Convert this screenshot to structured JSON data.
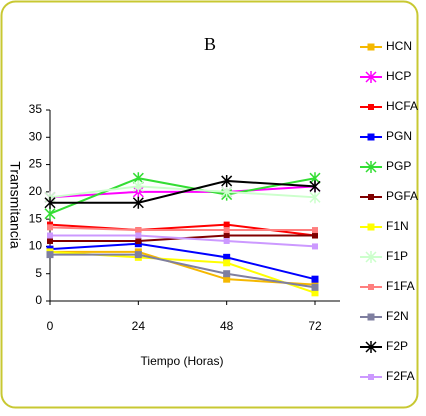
{
  "chart_data": {
    "type": "line",
    "title": "B",
    "x_label": "Tiempo (Horas)",
    "y_label": "Transmitancia",
    "x": [
      0,
      24,
      48,
      72
    ],
    "xlim": [
      0,
      72
    ],
    "xticks": [
      0,
      24,
      48,
      72
    ],
    "ylim": [
      0,
      35
    ],
    "yticks": [
      0,
      5,
      10,
      15,
      20,
      25,
      30,
      35
    ],
    "series": [
      {
        "name": "HCN",
        "color": "#f5b800",
        "values": [
          9,
          9,
          4,
          3
        ]
      },
      {
        "name": "HCP",
        "color": "#ff00ff",
        "values": [
          19,
          20,
          20,
          21
        ]
      },
      {
        "name": "HCFA",
        "color": "#ff0000",
        "values": [
          14,
          13,
          14,
          12
        ]
      },
      {
        "name": "PGN",
        "color": "#0000ff",
        "values": [
          9.5,
          10.5,
          8,
          4
        ]
      },
      {
        "name": "PGP",
        "color": "#33dd33",
        "values": [
          16,
          22.5,
          19.5,
          22.5
        ]
      },
      {
        "name": "PGFA",
        "color": "#800000",
        "values": [
          11,
          11,
          12,
          12
        ]
      },
      {
        "name": "F1N",
        "color": "#ffff00",
        "values": [
          9,
          8,
          7,
          1.5
        ]
      },
      {
        "name": "F1P",
        "color": "#ccffcc",
        "values": [
          19,
          21,
          20,
          19
        ]
      },
      {
        "name": "F1FA",
        "color": "#ff7f7f",
        "values": [
          13.5,
          13,
          13,
          13
        ]
      },
      {
        "name": "F2N",
        "color": "#7f7fa0",
        "values": [
          8.5,
          8.5,
          5,
          2.5
        ]
      },
      {
        "name": "F2P",
        "color": "#000000",
        "values": [
          18,
          18,
          22,
          21
        ]
      },
      {
        "name": "F2FA",
        "color": "#cc99ff",
        "values": [
          12,
          12,
          11,
          10
        ]
      }
    ]
  }
}
